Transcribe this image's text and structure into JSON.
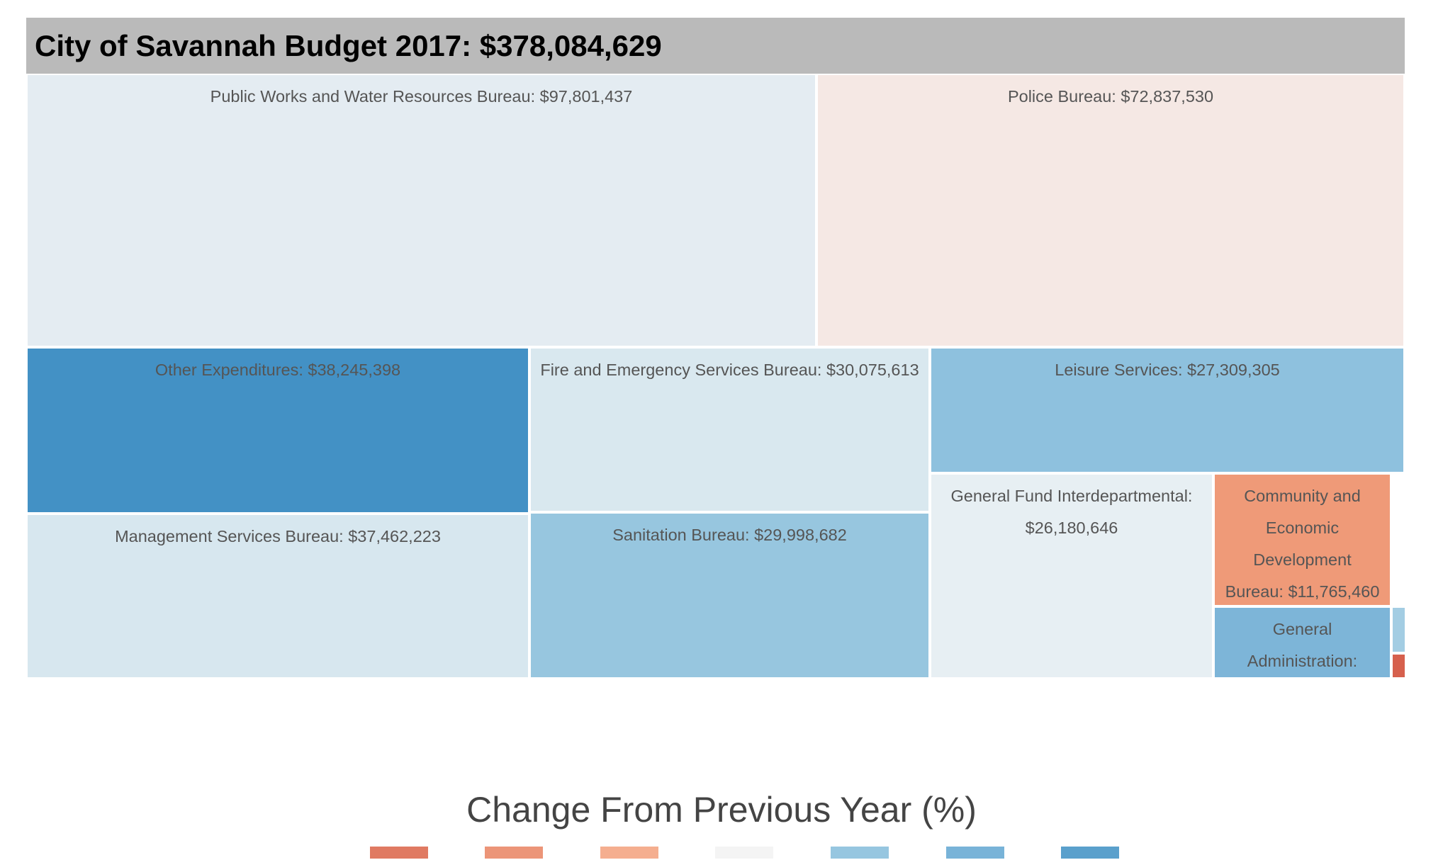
{
  "chart_data": {
    "type": "treemap",
    "title": "City of Savannah Budget 2017: $378,084,629",
    "total": 378084629,
    "cells": [
      {
        "name": "Public Works and Water Resources Bureau",
        "value": 97801437,
        "label": "Public Works and Water Resources Bureau: $97,801,437",
        "color": "#e4ecf2"
      },
      {
        "name": "Police Bureau",
        "value": 72837530,
        "label": "Police Bureau: $72,837,530",
        "color": "#f5e8e4"
      },
      {
        "name": "Other Expenditures",
        "value": 38245398,
        "label": "Other Expenditures: $38,245,398",
        "color": "#4391c5"
      },
      {
        "name": "Management Services Bureau",
        "value": 37462223,
        "label": "Management Services Bureau: $37,462,223",
        "color": "#d7e7ef"
      },
      {
        "name": "Fire and Emergency Services Bureau",
        "value": 30075613,
        "label": "Fire and Emergency Services Bureau: $30,075,613",
        "color": "#d9e8ef"
      },
      {
        "name": "Sanitation Bureau",
        "value": 29998682,
        "label": "Sanitation Bureau: $29,998,682",
        "color": "#97c6df"
      },
      {
        "name": "Leisure Services",
        "value": 27309305,
        "label": "Leisure Services: $27,309,305",
        "color": "#8ec1de"
      },
      {
        "name": "General Fund Interdepartmental",
        "value": 26180646,
        "label": "General Fund Interdepartmental: $26,180,646",
        "color": "#e7eff3"
      },
      {
        "name": "Community and Economic Development Bureau",
        "value": 11765460,
        "label": "Community and Economic Development Bureau: $11,765,460",
        "color": "#ef9a78"
      },
      {
        "name": "General Administration",
        "value": null,
        "label": "General Administration:",
        "color": "#7db5d8"
      },
      {
        "name": "",
        "value": null,
        "label": "",
        "color": "#a3cde3"
      },
      {
        "name": "",
        "value": null,
        "label": "",
        "color": "#d6604d"
      }
    ],
    "legend": {
      "title": "Change From Previous Year (%)",
      "colors": [
        "#e07a62",
        "#ec9578",
        "#f5ae8f",
        "#f4f4f4",
        "#96c6e0",
        "#78b3d8",
        "#5aa0cc"
      ]
    }
  }
}
